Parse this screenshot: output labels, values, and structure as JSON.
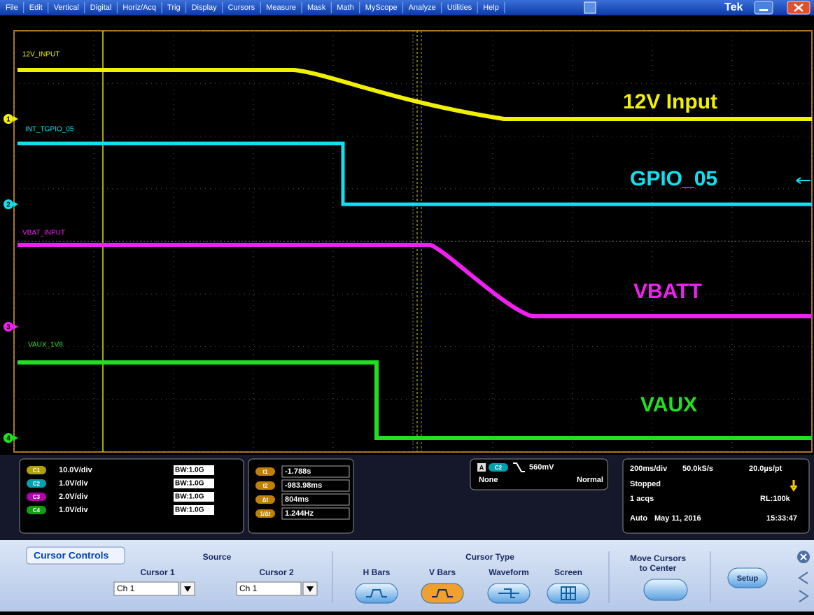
{
  "menu": {
    "items": [
      "File",
      "Edit",
      "Vertical",
      "Digital",
      "Horiz/Acq",
      "Trig",
      "Display",
      "Cursors",
      "Measure",
      "Mask",
      "Math",
      "MyScope",
      "Analyze",
      "Utilities",
      "Help"
    ],
    "brand": "Tek"
  },
  "waveforms": {
    "channels": [
      {
        "marker": "1",
        "label": "12V_INPUT",
        "name": "12V Input"
      },
      {
        "marker": "2",
        "label": "INT_TGPIO_05",
        "name": "GPIO_05"
      },
      {
        "marker": "3",
        "label": "VBAT_INPUT",
        "name": "VBATT"
      },
      {
        "marker": "4",
        "label": "VAUX_1V8",
        "name": "VAUX"
      }
    ]
  },
  "status": {
    "channels": [
      {
        "badge": "C1",
        "scale": "10.0V/div",
        "bandwidth": "BW:1.0G"
      },
      {
        "badge": "C2",
        "scale": "1.0V/div",
        "bandwidth": "BW:1.0G"
      },
      {
        "badge": "C3",
        "scale": "2.0V/div",
        "bandwidth": "BW:1.0G"
      },
      {
        "badge": "C4",
        "scale": "1.0V/div",
        "bandwidth": "BW:1.0G"
      }
    ],
    "cursors": [
      {
        "badge": "t1",
        "value": "-1.788s"
      },
      {
        "badge": "t2",
        "value": "-983.98ms"
      },
      {
        "badge": "Δt",
        "value": "804ms"
      },
      {
        "badge": "1/Δt",
        "value": "1.244Hz"
      }
    ],
    "trigger": {
      "event": "A",
      "source": "C2",
      "level": "560mV",
      "coupling": "None",
      "mode": "Normal"
    },
    "acquisition": {
      "timebase": "200ms/div",
      "sample_rate": "50.0kS/s",
      "resolution": "20.0µs/pt",
      "state": "Stopped",
      "count": "1 acqs",
      "record_length": "RL:100k",
      "mode": "Auto",
      "date": "May 11, 2016",
      "time": "15:33:47"
    }
  },
  "controls": {
    "tab": "Cursor Controls",
    "source_heading": "Source",
    "cursor1": "Cursor 1",
    "cursor1_source": "Ch 1",
    "cursor2": "Cursor 2",
    "cursor2_source": "Ch 1",
    "type_heading": "Cursor Type",
    "types": [
      "H Bars",
      "V Bars",
      "Waveform",
      "Screen"
    ],
    "move_line1": "Move Cursors",
    "move_line2": "to Center",
    "setup": "Setup"
  }
}
